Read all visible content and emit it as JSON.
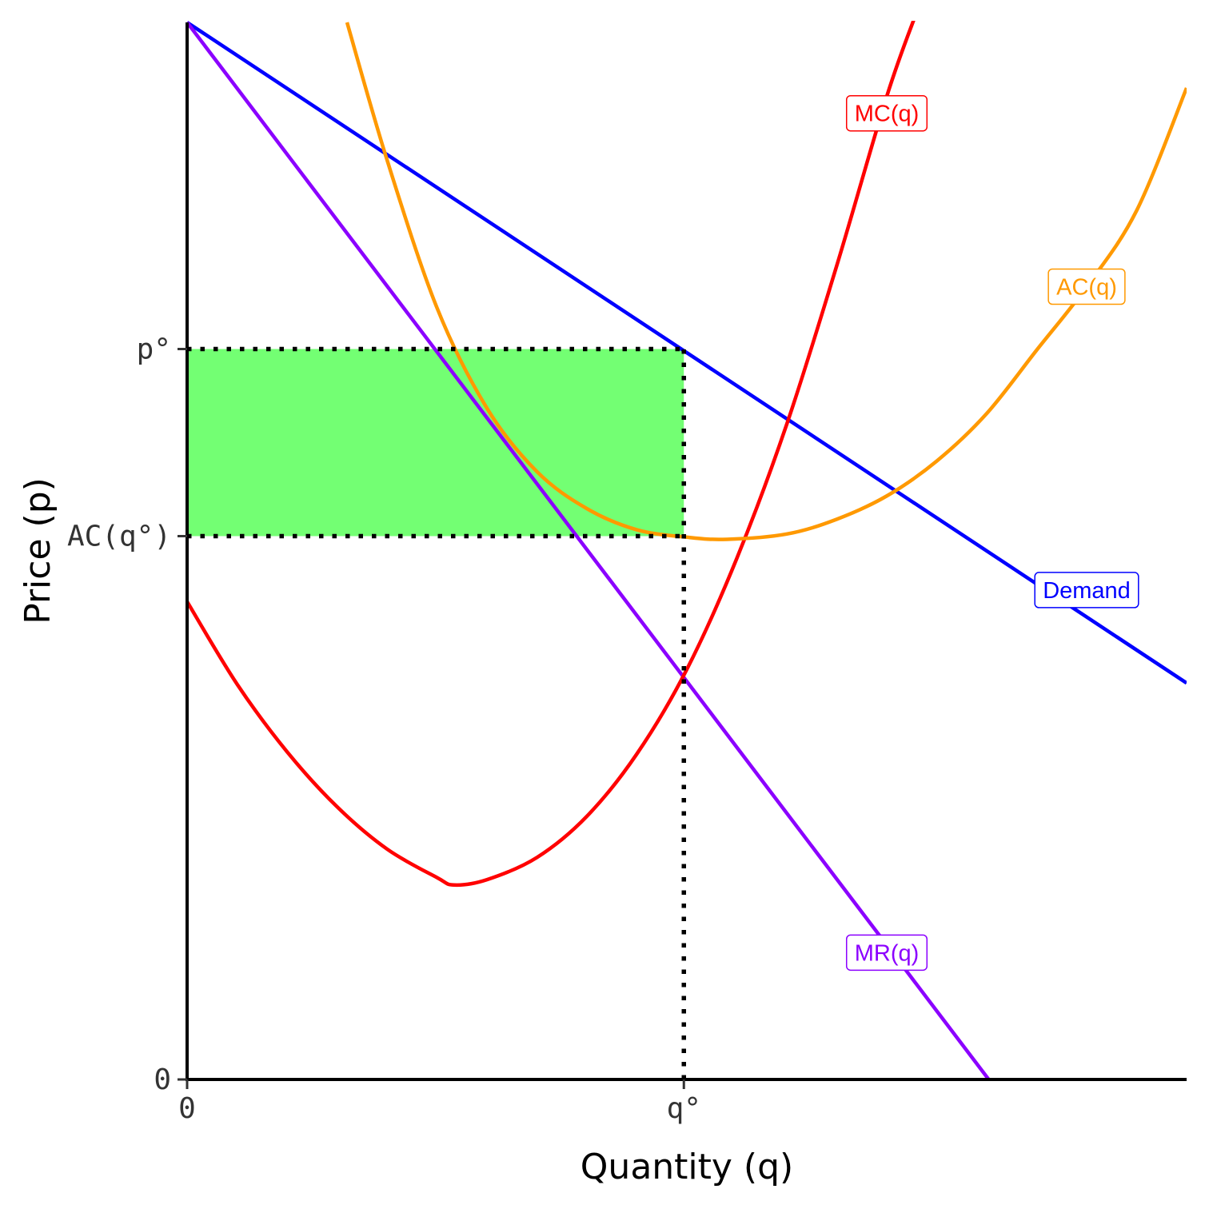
{
  "chart_data": {
    "type": "line",
    "title": "",
    "xlabel": "Quantity (q)",
    "ylabel": "Price (p)",
    "xlim": [
      0,
      10
    ],
    "ylim": [
      0,
      10
    ],
    "grid": false,
    "x_ticks": [
      {
        "value": 0,
        "label": "0"
      },
      {
        "value": 4.97,
        "label": "q°"
      }
    ],
    "y_ticks": [
      {
        "value": 0,
        "label": "0"
      },
      {
        "value": 5.14,
        "label": "AC(q°)"
      },
      {
        "value": 6.91,
        "label": "p°"
      }
    ],
    "series": [
      {
        "name": "Demand",
        "color": "#0000ff",
        "x": [
          0,
          10
        ],
        "y": [
          10,
          3.75
        ]
      },
      {
        "name": "MR(q)",
        "color": "#8b00ff",
        "x": [
          0,
          8.02
        ],
        "y": [
          10,
          0
        ]
      },
      {
        "name": "MC(q)",
        "color": "#ff0000",
        "x": [
          0,
          0.5,
          1.0,
          1.5,
          2.0,
          2.5,
          2.67,
          3.0,
          3.5,
          4.0,
          4.5,
          5.0,
          5.5,
          6.0,
          6.5,
          7.0,
          7.3
        ],
        "y": [
          4.52,
          3.74,
          3.1,
          2.58,
          2.18,
          1.91,
          1.84,
          1.89,
          2.1,
          2.49,
          3.08,
          3.88,
          4.93,
          6.2,
          7.7,
          9.3,
          10.1
        ]
      },
      {
        "name": "AC(q)",
        "color": "#ff9900",
        "x": [
          1.6,
          2.0,
          2.5,
          3.0,
          3.5,
          4.0,
          4.5,
          5.0,
          5.4,
          6.0,
          6.5,
          7.0,
          7.5,
          8.0,
          8.5,
          9.0,
          9.5,
          10.0
        ],
        "y": [
          10.0,
          8.7,
          7.3,
          6.35,
          5.75,
          5.4,
          5.2,
          5.13,
          5.11,
          5.16,
          5.3,
          5.52,
          5.85,
          6.3,
          6.9,
          7.5,
          8.22,
          9.38
        ]
      }
    ],
    "profit_rectangle": {
      "color": "#00ff00",
      "opacity": 0.55,
      "x": [
        0,
        4.97
      ],
      "y": [
        5.14,
        6.91
      ]
    },
    "reference_lines": [
      {
        "type": "horizontal",
        "y": 6.91,
        "x": [
          0,
          4.97
        ],
        "style": "dotted"
      },
      {
        "type": "horizontal",
        "y": 5.14,
        "x": [
          0,
          4.97
        ],
        "style": "dotted"
      },
      {
        "type": "vertical",
        "x": 4.97,
        "y": [
          0,
          6.91
        ],
        "style": "dotted"
      }
    ],
    "curve_labels": [
      {
        "text": "MC(q)",
        "color": "#ff0000",
        "x": 7.0,
        "y": 9.14
      },
      {
        "text": "AC(q)",
        "color": "#ff9900",
        "x": 9.0,
        "y": 7.5
      },
      {
        "text": "Demand",
        "color": "#0000ff",
        "x": 9.0,
        "y": 4.63
      },
      {
        "text": "MR(q)",
        "color": "#8b00ff",
        "x": 7.0,
        "y": 1.2
      }
    ]
  }
}
